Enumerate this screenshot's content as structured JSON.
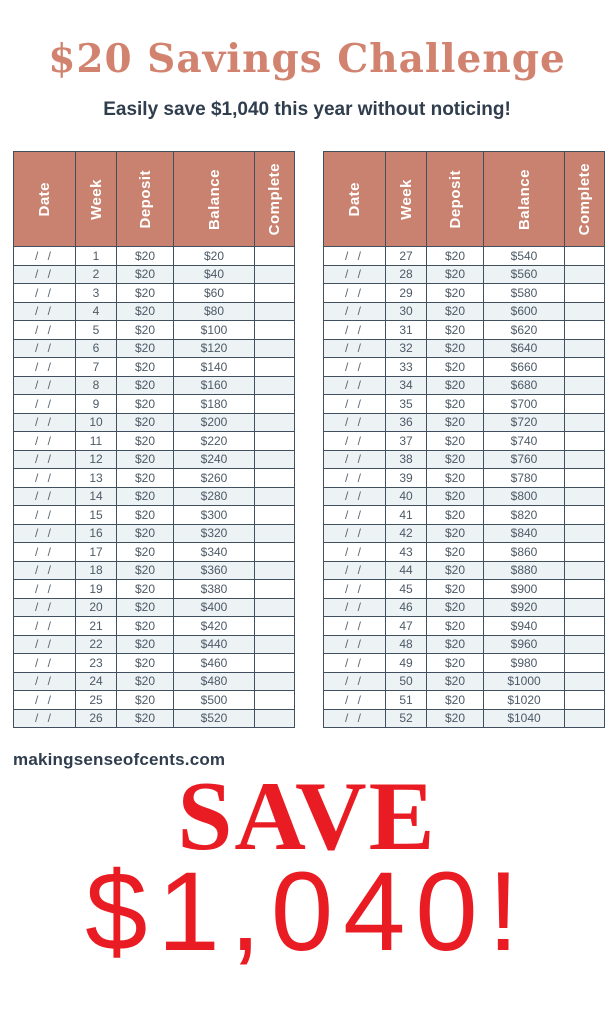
{
  "page": {
    "title": "$20 Savings Challenge",
    "subtitle": "Easily save $1,040 this year without noticing!",
    "website": "makingsenseofcents.com",
    "save_word": "SAVE",
    "save_amount": "$1,040!"
  },
  "colors": {
    "title_salmon": "#d2836f",
    "header_salmon": "#c9826f",
    "navy_text": "#2f3d4d",
    "table_border": "#41505e",
    "row_alt": "#edf2f5",
    "cell_text": "#4d5a66",
    "red": "#ea1c23",
    "header_label_white": "#ffffff"
  },
  "table_headers": [
    "Date",
    "Week",
    "Deposit",
    "Balance",
    "Complete"
  ],
  "tables": {
    "left": {
      "rows": [
        {
          "date": "/ /",
          "week": "1",
          "deposit": "$20",
          "balance": "$20",
          "complete": ""
        },
        {
          "date": "/ /",
          "week": "2",
          "deposit": "$20",
          "balance": "$40",
          "complete": ""
        },
        {
          "date": "/ /",
          "week": "3",
          "deposit": "$20",
          "balance": "$60",
          "complete": ""
        },
        {
          "date": "/ /",
          "week": "4",
          "deposit": "$20",
          "balance": "$80",
          "complete": ""
        },
        {
          "date": "/ /",
          "week": "5",
          "deposit": "$20",
          "balance": "$100",
          "complete": ""
        },
        {
          "date": "/ /",
          "week": "6",
          "deposit": "$20",
          "balance": "$120",
          "complete": ""
        },
        {
          "date": "/ /",
          "week": "7",
          "deposit": "$20",
          "balance": "$140",
          "complete": ""
        },
        {
          "date": "/ /",
          "week": "8",
          "deposit": "$20",
          "balance": "$160",
          "complete": ""
        },
        {
          "date": "/ /",
          "week": "9",
          "deposit": "$20",
          "balance": "$180",
          "complete": ""
        },
        {
          "date": "/ /",
          "week": "10",
          "deposit": "$20",
          "balance": "$200",
          "complete": ""
        },
        {
          "date": "/ /",
          "week": "11",
          "deposit": "$20",
          "balance": "$220",
          "complete": ""
        },
        {
          "date": "/ /",
          "week": "12",
          "deposit": "$20",
          "balance": "$240",
          "complete": ""
        },
        {
          "date": "/ /",
          "week": "13",
          "deposit": "$20",
          "balance": "$260",
          "complete": ""
        },
        {
          "date": "/ /",
          "week": "14",
          "deposit": "$20",
          "balance": "$280",
          "complete": ""
        },
        {
          "date": "/ /",
          "week": "15",
          "deposit": "$20",
          "balance": "$300",
          "complete": ""
        },
        {
          "date": "/ /",
          "week": "16",
          "deposit": "$20",
          "balance": "$320",
          "complete": ""
        },
        {
          "date": "/ /",
          "week": "17",
          "deposit": "$20",
          "balance": "$340",
          "complete": ""
        },
        {
          "date": "/ /",
          "week": "18",
          "deposit": "$20",
          "balance": "$360",
          "complete": ""
        },
        {
          "date": "/ /",
          "week": "19",
          "deposit": "$20",
          "balance": "$380",
          "complete": ""
        },
        {
          "date": "/ /",
          "week": "20",
          "deposit": "$20",
          "balance": "$400",
          "complete": ""
        },
        {
          "date": "/ /",
          "week": "21",
          "deposit": "$20",
          "balance": "$420",
          "complete": ""
        },
        {
          "date": "/ /",
          "week": "22",
          "deposit": "$20",
          "balance": "$440",
          "complete": ""
        },
        {
          "date": "/ /",
          "week": "23",
          "deposit": "$20",
          "balance": "$460",
          "complete": ""
        },
        {
          "date": "/ /",
          "week": "24",
          "deposit": "$20",
          "balance": "$480",
          "complete": ""
        },
        {
          "date": "/ /",
          "week": "25",
          "deposit": "$20",
          "balance": "$500",
          "complete": ""
        },
        {
          "date": "/ /",
          "week": "26",
          "deposit": "$20",
          "balance": "$520",
          "complete": ""
        }
      ]
    },
    "right": {
      "rows": [
        {
          "date": "/ /",
          "week": "27",
          "deposit": "$20",
          "balance": "$540",
          "complete": ""
        },
        {
          "date": "/ /",
          "week": "28",
          "deposit": "$20",
          "balance": "$560",
          "complete": ""
        },
        {
          "date": "/ /",
          "week": "29",
          "deposit": "$20",
          "balance": "$580",
          "complete": ""
        },
        {
          "date": "/ /",
          "week": "30",
          "deposit": "$20",
          "balance": "$600",
          "complete": ""
        },
        {
          "date": "/ /",
          "week": "31",
          "deposit": "$20",
          "balance": "$620",
          "complete": ""
        },
        {
          "date": "/ /",
          "week": "32",
          "deposit": "$20",
          "balance": "$640",
          "complete": ""
        },
        {
          "date": "/ /",
          "week": "33",
          "deposit": "$20",
          "balance": "$660",
          "complete": ""
        },
        {
          "date": "/ /",
          "week": "34",
          "deposit": "$20",
          "balance": "$680",
          "complete": ""
        },
        {
          "date": "/ /",
          "week": "35",
          "deposit": "$20",
          "balance": "$700",
          "complete": ""
        },
        {
          "date": "/ /",
          "week": "36",
          "deposit": "$20",
          "balance": "$720",
          "complete": ""
        },
        {
          "date": "/ /",
          "week": "37",
          "deposit": "$20",
          "balance": "$740",
          "complete": ""
        },
        {
          "date": "/ /",
          "week": "38",
          "deposit": "$20",
          "balance": "$760",
          "complete": ""
        },
        {
          "date": "/ /",
          "week": "39",
          "deposit": "$20",
          "balance": "$780",
          "complete": ""
        },
        {
          "date": "/ /",
          "week": "40",
          "deposit": "$20",
          "balance": "$800",
          "complete": ""
        },
        {
          "date": "/ /",
          "week": "41",
          "deposit": "$20",
          "balance": "$820",
          "complete": ""
        },
        {
          "date": "/ /",
          "week": "42",
          "deposit": "$20",
          "balance": "$840",
          "complete": ""
        },
        {
          "date": "/ /",
          "week": "43",
          "deposit": "$20",
          "balance": "$860",
          "complete": ""
        },
        {
          "date": "/ /",
          "week": "44",
          "deposit": "$20",
          "balance": "$880",
          "complete": ""
        },
        {
          "date": "/ /",
          "week": "45",
          "deposit": "$20",
          "balance": "$900",
          "complete": ""
        },
        {
          "date": "/ /",
          "week": "46",
          "deposit": "$20",
          "balance": "$920",
          "complete": ""
        },
        {
          "date": "/ /",
          "week": "47",
          "deposit": "$20",
          "balance": "$940",
          "complete": ""
        },
        {
          "date": "/ /",
          "week": "48",
          "deposit": "$20",
          "balance": "$960",
          "complete": ""
        },
        {
          "date": "/ /",
          "week": "49",
          "deposit": "$20",
          "balance": "$980",
          "complete": ""
        },
        {
          "date": "/ /",
          "week": "50",
          "deposit": "$20",
          "balance": "$1000",
          "complete": ""
        },
        {
          "date": "/ /",
          "week": "51",
          "deposit": "$20",
          "balance": "$1020",
          "complete": ""
        },
        {
          "date": "/ /",
          "week": "52",
          "deposit": "$20",
          "balance": "$1040",
          "complete": ""
        }
      ]
    }
  }
}
